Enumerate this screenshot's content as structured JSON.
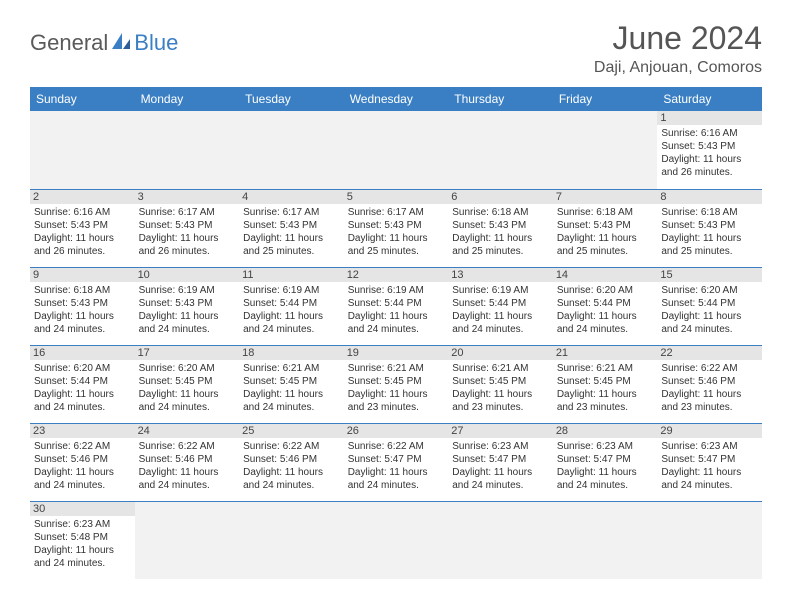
{
  "logo": {
    "part1": "General",
    "part2": "Blue"
  },
  "title": "June 2024",
  "location": "Daji, Anjouan, Comoros",
  "colors": {
    "header_bg": "#3a7fc4",
    "header_fg": "#ffffff",
    "daynum_bg": "#e5e5e5",
    "empty_bg": "#f2f2f2",
    "border": "#3a7fc4",
    "text": "#333333"
  },
  "day_names": [
    "Sunday",
    "Monday",
    "Tuesday",
    "Wednesday",
    "Thursday",
    "Friday",
    "Saturday"
  ],
  "weeks": [
    [
      null,
      null,
      null,
      null,
      null,
      null,
      {
        "n": "1",
        "sr": "Sunrise: 6:16 AM",
        "ss": "Sunset: 5:43 PM",
        "d1": "Daylight: 11 hours",
        "d2": "and 26 minutes."
      }
    ],
    [
      {
        "n": "2",
        "sr": "Sunrise: 6:16 AM",
        "ss": "Sunset: 5:43 PM",
        "d1": "Daylight: 11 hours",
        "d2": "and 26 minutes."
      },
      {
        "n": "3",
        "sr": "Sunrise: 6:17 AM",
        "ss": "Sunset: 5:43 PM",
        "d1": "Daylight: 11 hours",
        "d2": "and 26 minutes."
      },
      {
        "n": "4",
        "sr": "Sunrise: 6:17 AM",
        "ss": "Sunset: 5:43 PM",
        "d1": "Daylight: 11 hours",
        "d2": "and 25 minutes."
      },
      {
        "n": "5",
        "sr": "Sunrise: 6:17 AM",
        "ss": "Sunset: 5:43 PM",
        "d1": "Daylight: 11 hours",
        "d2": "and 25 minutes."
      },
      {
        "n": "6",
        "sr": "Sunrise: 6:18 AM",
        "ss": "Sunset: 5:43 PM",
        "d1": "Daylight: 11 hours",
        "d2": "and 25 minutes."
      },
      {
        "n": "7",
        "sr": "Sunrise: 6:18 AM",
        "ss": "Sunset: 5:43 PM",
        "d1": "Daylight: 11 hours",
        "d2": "and 25 minutes."
      },
      {
        "n": "8",
        "sr": "Sunrise: 6:18 AM",
        "ss": "Sunset: 5:43 PM",
        "d1": "Daylight: 11 hours",
        "d2": "and 25 minutes."
      }
    ],
    [
      {
        "n": "9",
        "sr": "Sunrise: 6:18 AM",
        "ss": "Sunset: 5:43 PM",
        "d1": "Daylight: 11 hours",
        "d2": "and 24 minutes."
      },
      {
        "n": "10",
        "sr": "Sunrise: 6:19 AM",
        "ss": "Sunset: 5:43 PM",
        "d1": "Daylight: 11 hours",
        "d2": "and 24 minutes."
      },
      {
        "n": "11",
        "sr": "Sunrise: 6:19 AM",
        "ss": "Sunset: 5:44 PM",
        "d1": "Daylight: 11 hours",
        "d2": "and 24 minutes."
      },
      {
        "n": "12",
        "sr": "Sunrise: 6:19 AM",
        "ss": "Sunset: 5:44 PM",
        "d1": "Daylight: 11 hours",
        "d2": "and 24 minutes."
      },
      {
        "n": "13",
        "sr": "Sunrise: 6:19 AM",
        "ss": "Sunset: 5:44 PM",
        "d1": "Daylight: 11 hours",
        "d2": "and 24 minutes."
      },
      {
        "n": "14",
        "sr": "Sunrise: 6:20 AM",
        "ss": "Sunset: 5:44 PM",
        "d1": "Daylight: 11 hours",
        "d2": "and 24 minutes."
      },
      {
        "n": "15",
        "sr": "Sunrise: 6:20 AM",
        "ss": "Sunset: 5:44 PM",
        "d1": "Daylight: 11 hours",
        "d2": "and 24 minutes."
      }
    ],
    [
      {
        "n": "16",
        "sr": "Sunrise: 6:20 AM",
        "ss": "Sunset: 5:44 PM",
        "d1": "Daylight: 11 hours",
        "d2": "and 24 minutes."
      },
      {
        "n": "17",
        "sr": "Sunrise: 6:20 AM",
        "ss": "Sunset: 5:45 PM",
        "d1": "Daylight: 11 hours",
        "d2": "and 24 minutes."
      },
      {
        "n": "18",
        "sr": "Sunrise: 6:21 AM",
        "ss": "Sunset: 5:45 PM",
        "d1": "Daylight: 11 hours",
        "d2": "and 24 minutes."
      },
      {
        "n": "19",
        "sr": "Sunrise: 6:21 AM",
        "ss": "Sunset: 5:45 PM",
        "d1": "Daylight: 11 hours",
        "d2": "and 23 minutes."
      },
      {
        "n": "20",
        "sr": "Sunrise: 6:21 AM",
        "ss": "Sunset: 5:45 PM",
        "d1": "Daylight: 11 hours",
        "d2": "and 23 minutes."
      },
      {
        "n": "21",
        "sr": "Sunrise: 6:21 AM",
        "ss": "Sunset: 5:45 PM",
        "d1": "Daylight: 11 hours",
        "d2": "and 23 minutes."
      },
      {
        "n": "22",
        "sr": "Sunrise: 6:22 AM",
        "ss": "Sunset: 5:46 PM",
        "d1": "Daylight: 11 hours",
        "d2": "and 23 minutes."
      }
    ],
    [
      {
        "n": "23",
        "sr": "Sunrise: 6:22 AM",
        "ss": "Sunset: 5:46 PM",
        "d1": "Daylight: 11 hours",
        "d2": "and 24 minutes."
      },
      {
        "n": "24",
        "sr": "Sunrise: 6:22 AM",
        "ss": "Sunset: 5:46 PM",
        "d1": "Daylight: 11 hours",
        "d2": "and 24 minutes."
      },
      {
        "n": "25",
        "sr": "Sunrise: 6:22 AM",
        "ss": "Sunset: 5:46 PM",
        "d1": "Daylight: 11 hours",
        "d2": "and 24 minutes."
      },
      {
        "n": "26",
        "sr": "Sunrise: 6:22 AM",
        "ss": "Sunset: 5:47 PM",
        "d1": "Daylight: 11 hours",
        "d2": "and 24 minutes."
      },
      {
        "n": "27",
        "sr": "Sunrise: 6:23 AM",
        "ss": "Sunset: 5:47 PM",
        "d1": "Daylight: 11 hours",
        "d2": "and 24 minutes."
      },
      {
        "n": "28",
        "sr": "Sunrise: 6:23 AM",
        "ss": "Sunset: 5:47 PM",
        "d1": "Daylight: 11 hours",
        "d2": "and 24 minutes."
      },
      {
        "n": "29",
        "sr": "Sunrise: 6:23 AM",
        "ss": "Sunset: 5:47 PM",
        "d1": "Daylight: 11 hours",
        "d2": "and 24 minutes."
      }
    ],
    [
      {
        "n": "30",
        "sr": "Sunrise: 6:23 AM",
        "ss": "Sunset: 5:48 PM",
        "d1": "Daylight: 11 hours",
        "d2": "and 24 minutes."
      },
      null,
      null,
      null,
      null,
      null,
      null
    ]
  ]
}
